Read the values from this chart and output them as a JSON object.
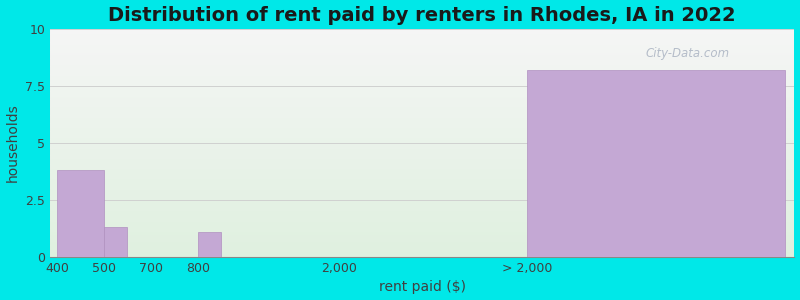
{
  "title": "Distribution of rent paid by renters in Rhodes, IA in 2022",
  "xlabel": "rent paid ($)",
  "ylabel": "households",
  "bar_left_edges": [
    0,
    1,
    2,
    3,
    6,
    10
  ],
  "bar_widths": [
    1,
    0.5,
    0.5,
    0.5,
    1.5,
    5.5
  ],
  "values": [
    3.8,
    1.3,
    0,
    1.1,
    0,
    8.2
  ],
  "tick_positions": [
    0,
    1,
    2,
    3,
    6,
    10
  ],
  "tick_labels": [
    "400",
    "500",
    "700",
    "800",
    "2,000",
    "> 2,000"
  ],
  "bar_color": "#c4a8d4",
  "bar_edgecolor": "#b090c0",
  "ylim": [
    0,
    10
  ],
  "yticks": [
    0,
    2.5,
    5,
    7.5,
    10
  ],
  "xlim_left": -0.15,
  "xlim_right": 15.7,
  "background_outer": "#00e8e8",
  "plot_bg_top_color": "#f5f5f5",
  "plot_bg_bottom_color": "#dff0df",
  "title_fontsize": 14,
  "axis_label_fontsize": 10,
  "tick_fontsize": 9,
  "watermark": "City-Data.com",
  "grid_color": "#d0d0d0"
}
